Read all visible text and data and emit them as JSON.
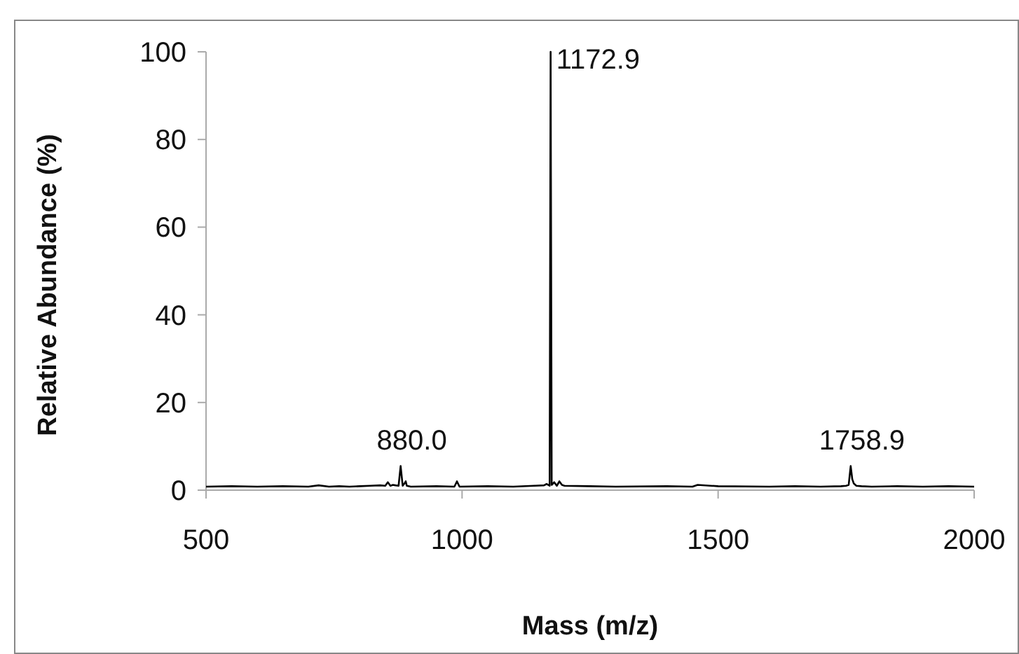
{
  "chart_data": {
    "type": "line",
    "xlabel": "Mass (m/z)",
    "ylabel": "Relative Abundance (%)",
    "xlim": [
      500,
      2000
    ],
    "ylim": [
      0,
      100
    ],
    "xticks": [
      500,
      1000,
      1500,
      2000
    ],
    "yticks": [
      0,
      20,
      40,
      60,
      80,
      100
    ],
    "grid": false,
    "marker": "none",
    "line_style": "solid",
    "series": [
      {
        "color": "#000000",
        "x": [
          500,
          550,
          600,
          650,
          700,
          720,
          740,
          760,
          780,
          800,
          820,
          840,
          850,
          855,
          860,
          865,
          870,
          876,
          880,
          884,
          888,
          890,
          892,
          900,
          950,
          985,
          990,
          995,
          1050,
          1100,
          1140,
          1160,
          1165,
          1171,
          1172.9,
          1175,
          1180,
          1185,
          1190,
          1195,
          1200,
          1250,
          1300,
          1400,
          1450,
          1460,
          1500,
          1600,
          1650,
          1700,
          1740,
          1750,
          1755,
          1758.9,
          1762,
          1765,
          1770,
          1780,
          1800,
          1850,
          1900,
          1950,
          2000
        ],
        "values": [
          0.8,
          0.9,
          0.8,
          0.9,
          0.8,
          1.1,
          0.8,
          0.9,
          0.8,
          0.9,
          1.0,
          1.1,
          1.0,
          1.8,
          1.0,
          1.2,
          1.1,
          1.0,
          5.5,
          1.0,
          1.6,
          2.0,
          1.0,
          0.8,
          0.9,
          0.8,
          2.0,
          0.8,
          0.9,
          0.8,
          1.0,
          1.1,
          1.4,
          1.0,
          100,
          1.2,
          1.8,
          1.0,
          2.0,
          1.2,
          1.0,
          0.9,
          0.8,
          0.9,
          0.8,
          1.2,
          0.9,
          0.8,
          0.9,
          0.8,
          0.9,
          1.0,
          1.2,
          5.5,
          2.5,
          1.5,
          1.0,
          0.9,
          0.8,
          0.9,
          0.8,
          0.9,
          0.8
        ]
      }
    ],
    "annotations": [
      {
        "text": "880.0",
        "x": 880,
        "y": 5.5
      },
      {
        "text": "1172.9",
        "x": 1172.9,
        "y": 100
      },
      {
        "text": "1758.9",
        "x": 1758.9,
        "y": 5.5
      }
    ]
  }
}
